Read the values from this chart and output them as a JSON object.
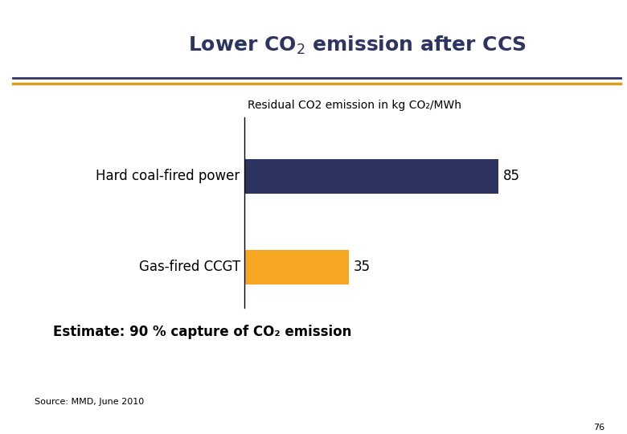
{
  "title": "Lower CO$_2$ emission after CCS",
  "chart_subtitle": "Residual CO2 emission in kg CO₂/MWh",
  "categories": [
    "Hard coal-fired power",
    "Gas-fired CCGT"
  ],
  "values": [
    85,
    35
  ],
  "bar_colors": [
    "#2E3461",
    "#F5A623"
  ],
  "value_labels": [
    "85",
    "35"
  ],
  "estimate_text": "Estimate: 90 % capture of CO₂ emission",
  "source_text": "Source: MMD, June 2010",
  "slide_number": "76",
  "header_line1_color": "#2E3461",
  "header_line2_color": "#D4A017",
  "bg_color": "#FFFFFF",
  "bar_height": 0.38,
  "xlim": [
    0,
    105
  ],
  "label_fontsize": 12,
  "value_fontsize": 12,
  "subtitle_fontsize": 10,
  "estimate_fontsize": 12,
  "source_fontsize": 8,
  "title_fontsize": 18,
  "title_color": "#2E3461",
  "bottom_bar_color": "#2E3461",
  "bottom_bar_height": 0.018
}
